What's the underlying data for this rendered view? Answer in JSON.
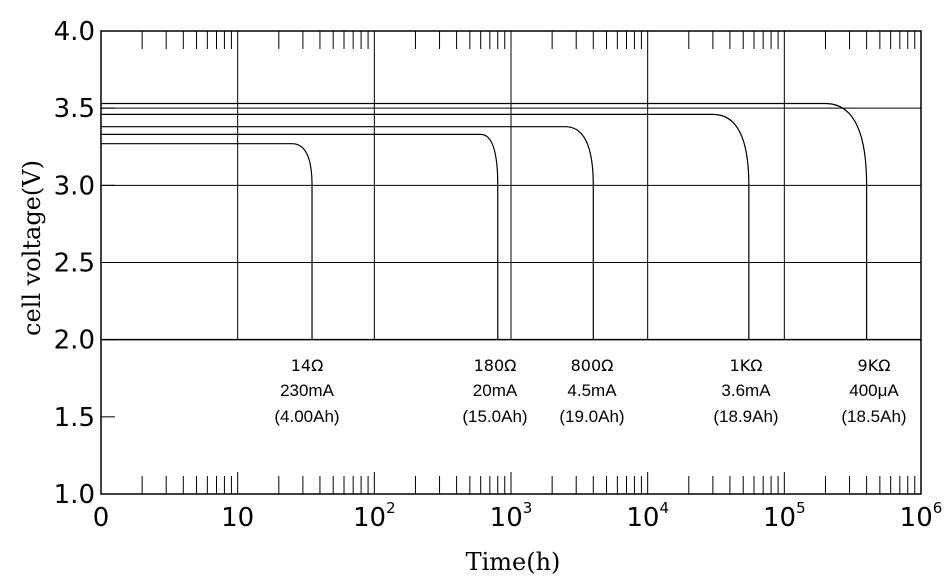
{
  "chart_data": {
    "type": "line",
    "xlabel": "Time(h)",
    "ylabel": "cell voltage(V)",
    "x_scale": "log",
    "xlim": [
      1,
      1000000
    ],
    "ylim": [
      1.0,
      4.0
    ],
    "y_ticks": [
      "1.0",
      "1.5",
      "2.0",
      "2.5",
      "3.0",
      "3.5",
      "4.0"
    ],
    "x_ticks": [
      {
        "base": "0",
        "exp": ""
      },
      {
        "base": "10",
        "exp": ""
      },
      {
        "base": "10",
        "exp": "2"
      },
      {
        "base": "10",
        "exp": "3"
      },
      {
        "base": "10",
        "exp": "4"
      },
      {
        "base": "10",
        "exp": "5"
      },
      {
        "base": "10",
        "exp": "6"
      }
    ],
    "grid": true,
    "series": [
      {
        "load": "14Ω",
        "current": "230mA",
        "capacity": "(4.00Ah)",
        "points": [
          [
            1,
            3.27
          ],
          [
            25,
            3.27
          ],
          [
            30,
            3.22
          ],
          [
            35,
            3.0
          ],
          [
            35,
            2.0
          ]
        ]
      },
      {
        "load": "180Ω",
        "current": "20mA",
        "capacity": "(15.0Ah)",
        "points": [
          [
            1,
            3.33
          ],
          [
            600,
            3.33
          ],
          [
            700,
            3.27
          ],
          [
            800,
            3.0
          ],
          [
            800,
            2.0
          ]
        ]
      },
      {
        "load": "800Ω",
        "current": "4.5mA",
        "capacity": "(19.0Ah)",
        "points": [
          [
            1,
            3.38
          ],
          [
            2500,
            3.38
          ],
          [
            3300,
            3.3
          ],
          [
            4000,
            3.0
          ],
          [
            4000,
            2.0
          ]
        ]
      },
      {
        "load": "1KΩ",
        "current": "3.6mA",
        "capacity": "(18.9Ah)",
        "points": [
          [
            1,
            3.46
          ],
          [
            30000,
            3.46
          ],
          [
            45000,
            3.38
          ],
          [
            55000,
            3.0
          ],
          [
            55000,
            2.0
          ]
        ]
      },
      {
        "load": "9KΩ",
        "current": "400μA",
        "capacity": "(18.5Ah)",
        "points": [
          [
            1,
            3.53
          ],
          [
            200000,
            3.53
          ],
          [
            300000,
            3.45
          ],
          [
            400000,
            3.0
          ],
          [
            400000,
            2.0
          ]
        ]
      }
    ]
  }
}
